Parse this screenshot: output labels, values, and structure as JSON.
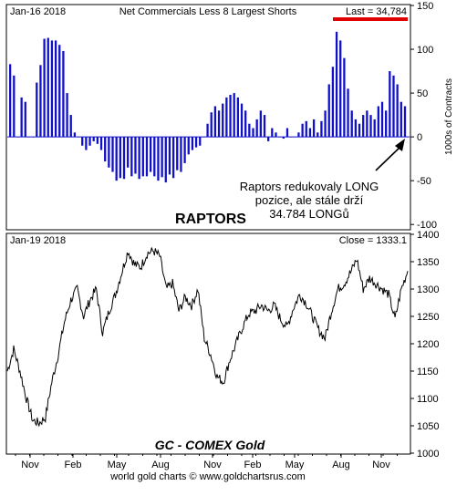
{
  "chart_data": [
    {
      "type": "bar",
      "title": "Net Commercials Less 8 Largest Shorts",
      "date_label": "Jan-16  2018",
      "last_label": "Last = 34,784",
      "watermark": "RAPTORS",
      "ylabel": "1000s of Contracts",
      "ylim": [
        -105,
        150
      ],
      "yticks": [
        "150",
        "100",
        "50",
        "0",
        "-50",
        "-100"
      ],
      "ytick_values": [
        150,
        100,
        50,
        0,
        -50,
        -100
      ],
      "annotation": [
        "Raptors redukovaly LONG",
        "pozice, ale stále drží",
        "34.784 LONGů"
      ],
      "bar_color": "#1010c8",
      "last_color": "#e00000",
      "series": [
        {
          "values": [
            83,
            70,
            0,
            45,
            40,
            0,
            0,
            62,
            82,
            112,
            113,
            110,
            110,
            105,
            98,
            50,
            25,
            5,
            0,
            -10,
            -15,
            -10,
            -5,
            -8,
            -15,
            -28,
            -35,
            -40,
            -50,
            -47,
            -48,
            -35,
            -45,
            -42,
            -48,
            -45,
            -45,
            -40,
            -45,
            -50,
            -46,
            -52,
            -43,
            -47,
            -38,
            -40,
            -30,
            -20,
            -15,
            -12,
            -10,
            0,
            15,
            28,
            35,
            30,
            38,
            45,
            48,
            50,
            45,
            38,
            30,
            15,
            10,
            20,
            30,
            25,
            -5,
            10,
            5,
            0,
            -2,
            10,
            0,
            0,
            5,
            15,
            18,
            10,
            20,
            5,
            18,
            30,
            60,
            80,
            120,
            110,
            90,
            55,
            30,
            20,
            15,
            25,
            30,
            25,
            20,
            35,
            40,
            30,
            75,
            70,
            60,
            40,
            35
          ]
        }
      ]
    },
    {
      "type": "line",
      "title": "GC - COMEX Gold",
      "date_label": "Jan-19  2018",
      "close_label": "Close = 1333.1",
      "ylim": [
        1000,
        1400
      ],
      "yticks": [
        "1400",
        "1350",
        "1300",
        "1250",
        "1200",
        "1150",
        "1100",
        "1050",
        "1000"
      ],
      "ytick_values": [
        1400,
        1350,
        1300,
        1250,
        1200,
        1150,
        1100,
        1050,
        1000
      ],
      "xticks": [
        "Nov",
        "Feb",
        "May",
        "Aug",
        "Nov",
        "Feb",
        "May",
        "Aug",
        "Nov"
      ],
      "line_color": "#000000",
      "series": [
        {
          "x": [
            0,
            7,
            14,
            21,
            28,
            35,
            42,
            49,
            56,
            63,
            70,
            77,
            84,
            91,
            98,
            105,
            112,
            119,
            126,
            133,
            140,
            147,
            154,
            161,
            168,
            175,
            182,
            189,
            196,
            203,
            210,
            217,
            224,
            231,
            238,
            245,
            252,
            259,
            266,
            273,
            280,
            287,
            294,
            301,
            308,
            315,
            322,
            329,
            336,
            343,
            350,
            357,
            364,
            371,
            378,
            385,
            392,
            399,
            406,
            413,
            420,
            427,
            434,
            441
          ],
          "values": [
            1150,
            1190,
            1150,
            1100,
            1060,
            1055,
            1065,
            1130,
            1180,
            1240,
            1280,
            1300,
            1250,
            1280,
            1300,
            1220,
            1260,
            1290,
            1330,
            1370,
            1345,
            1340,
            1365,
            1370,
            1360,
            1300,
            1310,
            1260,
            1285,
            1270,
            1300,
            1210,
            1180,
            1140,
            1130,
            1170,
            1200,
            1230,
            1255,
            1260,
            1270,
            1260,
            1270,
            1245,
            1230,
            1265,
            1290,
            1275,
            1250,
            1225,
            1210,
            1260,
            1300,
            1310,
            1330,
            1355,
            1300,
            1320,
            1310,
            1300,
            1290,
            1245,
            1300,
            1333
          ]
        }
      ]
    }
  ],
  "footer": "world gold charts © www.goldchartsrus.com"
}
